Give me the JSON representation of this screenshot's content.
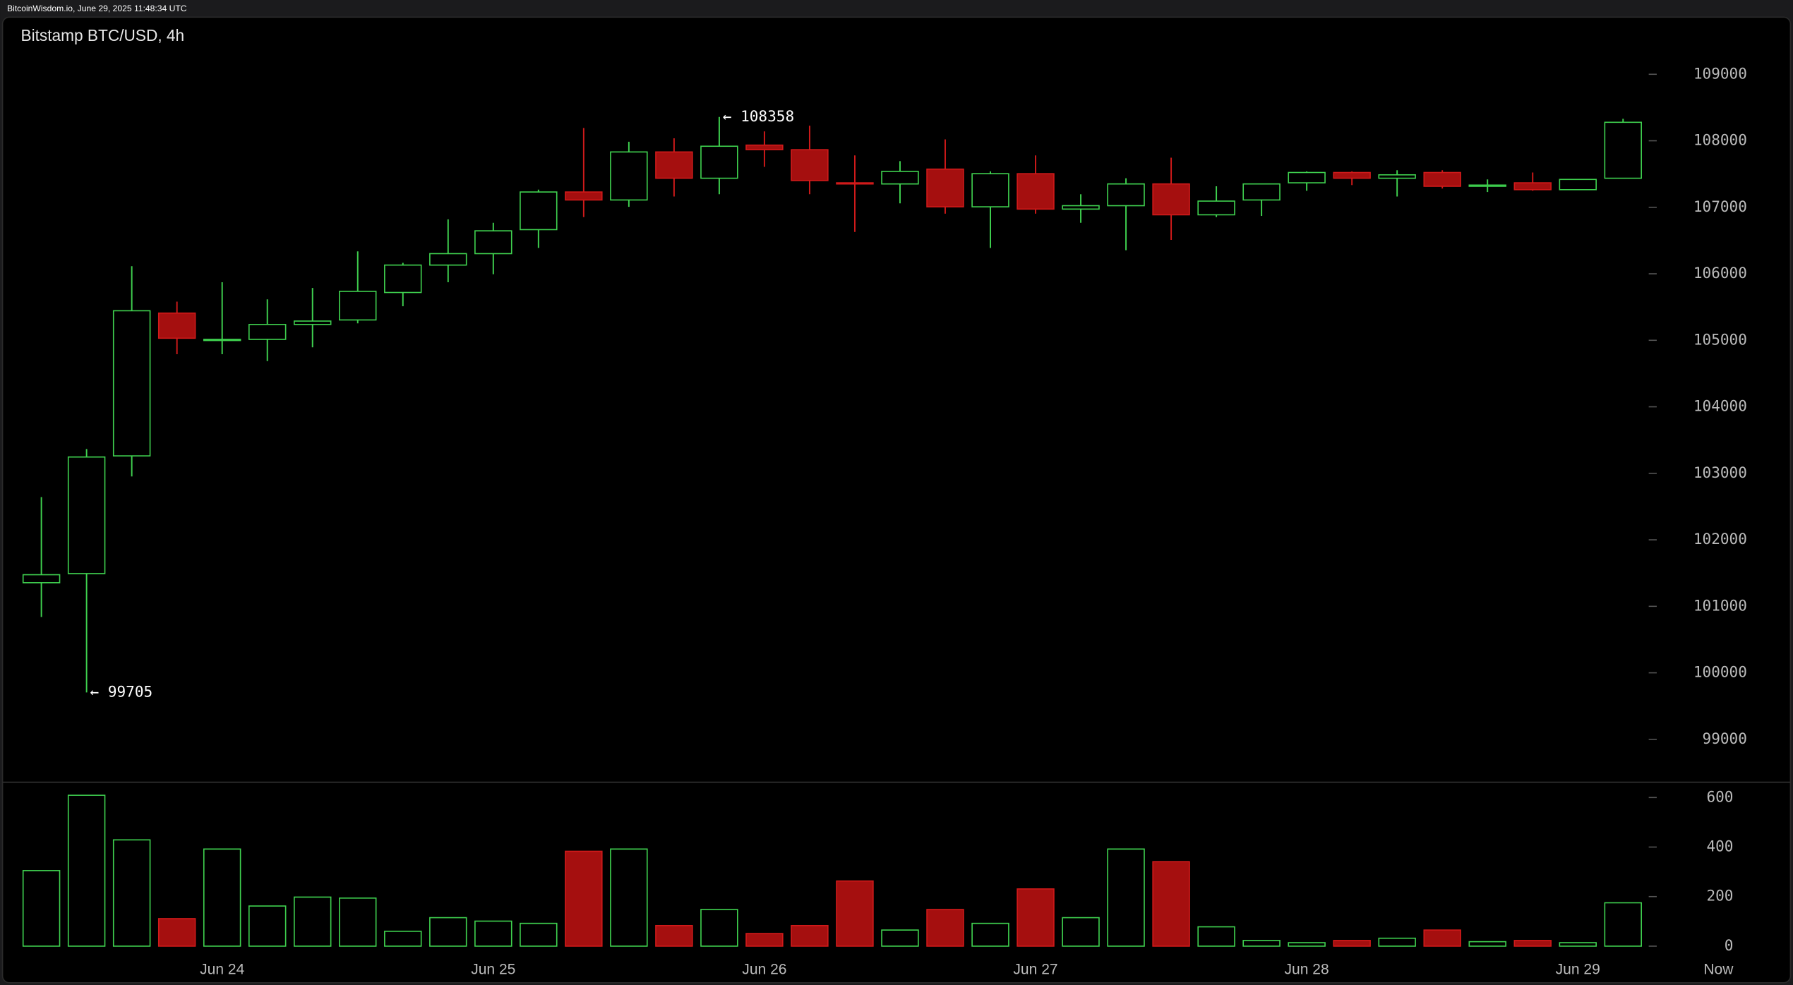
{
  "header": {
    "text": "BitcoinWisdom.io, June 29, 2025 11:48:34 UTC"
  },
  "chart_data": {
    "type": "candlestick",
    "title": "Bitstamp BTC/USD, 4h",
    "categories": [
      null,
      null,
      null,
      null,
      "Jun 24",
      null,
      null,
      null,
      null,
      null,
      "Jun 25",
      null,
      null,
      null,
      null,
      null,
      "Jun 26",
      null,
      null,
      null,
      null,
      null,
      "Jun 27",
      null,
      null,
      null,
      null,
      null,
      "Jun 28",
      null,
      null,
      null,
      null,
      null,
      "Jun 29",
      null
    ],
    "end_label": "Now",
    "open": [
      101355,
      101492,
      103262,
      105409,
      104997,
      105014,
      105238,
      105306,
      105719,
      106131,
      106303,
      106664,
      107230,
      107110,
      107832,
      107437,
      107935,
      107866,
      107368,
      107351,
      107574,
      107007,
      107505,
      106973,
      107024,
      107351,
      106887,
      107110,
      107368,
      107523,
      107437,
      107523,
      107316,
      107368,
      107265,
      107437
    ],
    "high": [
      102643,
      103365,
      106114,
      105581,
      105873,
      105616,
      105787,
      106337,
      106165,
      106818,
      106767,
      107265,
      108193,
      107986,
      108038,
      108358,
      108141,
      108227,
      107780,
      107694,
      108021,
      107540,
      107780,
      107196,
      107437,
      107746,
      107316,
      107351,
      107540,
      107540,
      107557,
      107557,
      107419,
      107523,
      107419,
      108330
    ],
    "low": [
      100840,
      99705,
      102953,
      104791,
      104791,
      104688,
      104894,
      105255,
      105512,
      105873,
      105994,
      106389,
      106853,
      107007,
      107162,
      107196,
      107608,
      107196,
      106629,
      107059,
      106904,
      106389,
      106904,
      106767,
      106354,
      106509,
      106853,
      106870,
      107248,
      107334,
      107162,
      107282,
      107230,
      107248,
      107265,
      107437
    ],
    "close": [
      101475,
      103245,
      105444,
      105031,
      105014,
      105238,
      105289,
      105736,
      106131,
      106303,
      106646,
      107230,
      107110,
      107832,
      107437,
      107918,
      107866,
      107402,
      107351,
      107540,
      107007,
      107505,
      106973,
      107024,
      107351,
      106887,
      107093,
      107351,
      107523,
      107437,
      107488,
      107316,
      107334,
      107265,
      107419,
      108278
    ],
    "volume": [
      305,
      609,
      429,
      111,
      392,
      162,
      198,
      194,
      60,
      115,
      101,
      92,
      383,
      392,
      83,
      148,
      51,
      83,
      263,
      65,
      148,
      92,
      231,
      115,
      392,
      341,
      78,
      23,
      14,
      23,
      32,
      65,
      18,
      23,
      14,
      175
    ],
    "up_color": "#3fd14f",
    "down_color": "#a50f0f",
    "ylim": [
      98500,
      109500
    ],
    "yticks": [
      99000,
      100000,
      101000,
      102000,
      103000,
      104000,
      105000,
      106000,
      107000,
      108000,
      109000
    ],
    "volume_ylim": [
      0,
      655
    ],
    "volume_yticks": [
      0,
      200,
      400,
      600
    ],
    "annotations": {
      "high_label": "← 108358",
      "low_label": "← 99705"
    }
  }
}
